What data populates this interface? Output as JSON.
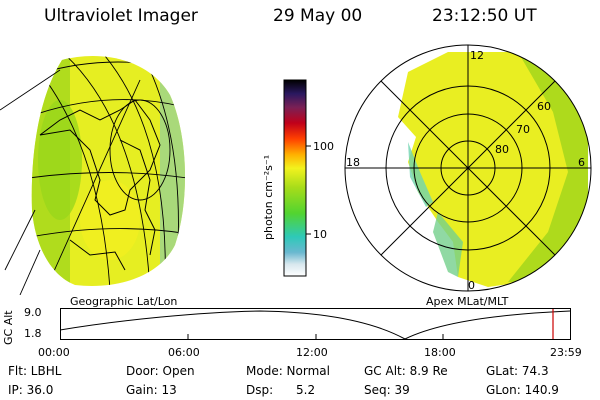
{
  "header": {
    "title": "Ultraviolet Imager",
    "date": "29 May 00",
    "time": "23:12:50 UT"
  },
  "left_panel": {
    "caption": "Geographic Lat/Lon"
  },
  "right_panel": {
    "caption": "Apex MLat/MLT",
    "mlt_labels": [
      "12",
      "18",
      "6",
      "0"
    ],
    "lat_labels": [
      "60",
      "70",
      "80"
    ]
  },
  "colorbar": {
    "unit": "photon cm⁻²s⁻¹",
    "ticks": [
      "100",
      "10"
    ],
    "scale": "log"
  },
  "timeline": {
    "ylabel": "GC Alt",
    "y_ticks": [
      "9.0",
      "1.8"
    ],
    "x_ticks": [
      "00:00",
      "06:00",
      "12:00",
      "18:00",
      "23:59"
    ],
    "marker_color": "#cc0000"
  },
  "status": {
    "row1": {
      "flt": "Flt: LBHL",
      "door": "Door: Open",
      "mode": "Mode: Normal",
      "gcalt": "GC Alt: 8.9 Re",
      "glat": "GLat: 74.3"
    },
    "row2": {
      "ip": "IP: 36.0",
      "gain": "Gain: 13",
      "dsp": "Dsp:      5.2",
      "seq": "Seq: 39",
      "glon": "GLon: 140.9"
    }
  },
  "colors": {
    "image_yellow": "#f2f21e",
    "image_green": "#9bd41a",
    "image_cyan": "#5fd7c8"
  }
}
